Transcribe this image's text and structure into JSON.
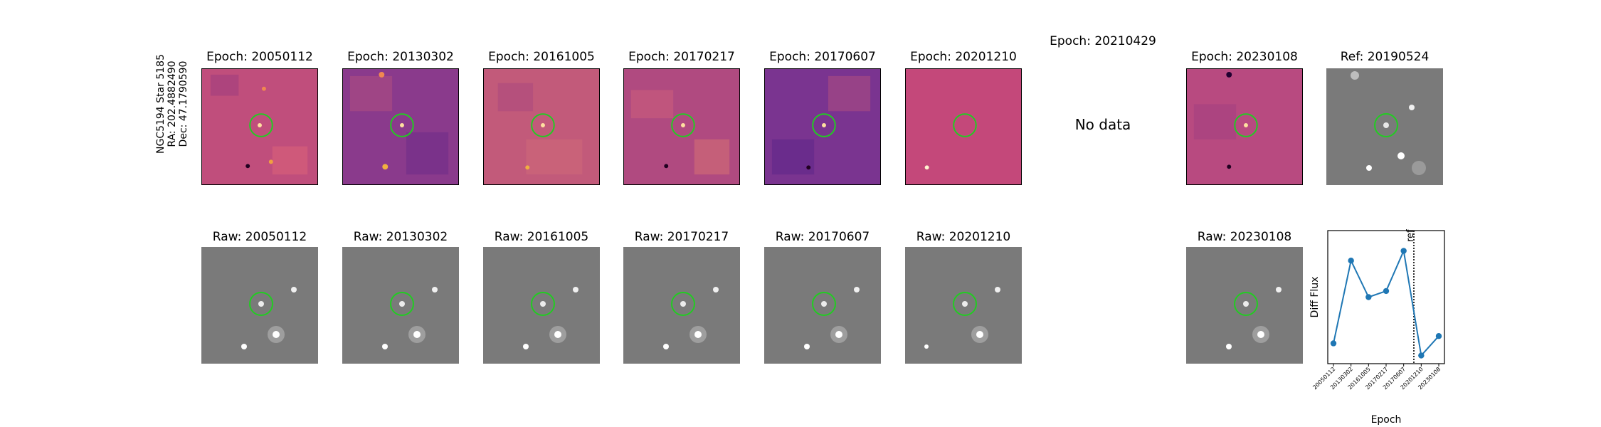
{
  "target": {
    "name": "NGC5194 Star 5185",
    "ra_text": "RA: 202.4882490",
    "dec_text": "Dec: 47.1790590"
  },
  "diff_panels": [
    {
      "title": "Epoch: 20050112",
      "data": true
    },
    {
      "title": "Epoch: 20130302",
      "data": true
    },
    {
      "title": "Epoch: 20161005",
      "data": true
    },
    {
      "title": "Epoch: 20170217",
      "data": true
    },
    {
      "title": "Epoch: 20170607",
      "data": true
    },
    {
      "title": "Epoch: 20201210",
      "data": true
    },
    {
      "title": "Epoch: 20210429",
      "data": false
    },
    {
      "title": "Epoch: 20230108",
      "data": true
    }
  ],
  "ref_panel": {
    "title": "Ref: 20190524"
  },
  "raw_panels": [
    {
      "title": "Raw: 20050112"
    },
    {
      "title": "Raw: 20130302"
    },
    {
      "title": "Raw: 20161005"
    },
    {
      "title": "Raw: 20170217"
    },
    {
      "title": "Raw: 20170607"
    },
    {
      "title": "Raw: 20201210"
    },
    {
      "title": "Raw: 20230108"
    }
  ],
  "no_data_text": "No data",
  "colors": {
    "marker_circle": "#22cc22",
    "series_line": "#1f77b4",
    "diff_background": "#c04e7c",
    "raw_background": "#7a7a7a"
  },
  "chart_data": {
    "type": "line",
    "title": "",
    "xlabel": "Epoch",
    "ylabel": "Diff Flux",
    "x": [
      "20050112",
      "20130302",
      "20161005",
      "20170217",
      "20170607",
      "20201210",
      "20230108"
    ],
    "series": [
      {
        "values": [
          0.12,
          0.8,
          0.5,
          0.55,
          0.88,
          0.02,
          0.18
        ]
      }
    ],
    "ref_line": {
      "after_index": 4,
      "label": "ref"
    },
    "yticks_shown": false,
    "grid": false
  }
}
